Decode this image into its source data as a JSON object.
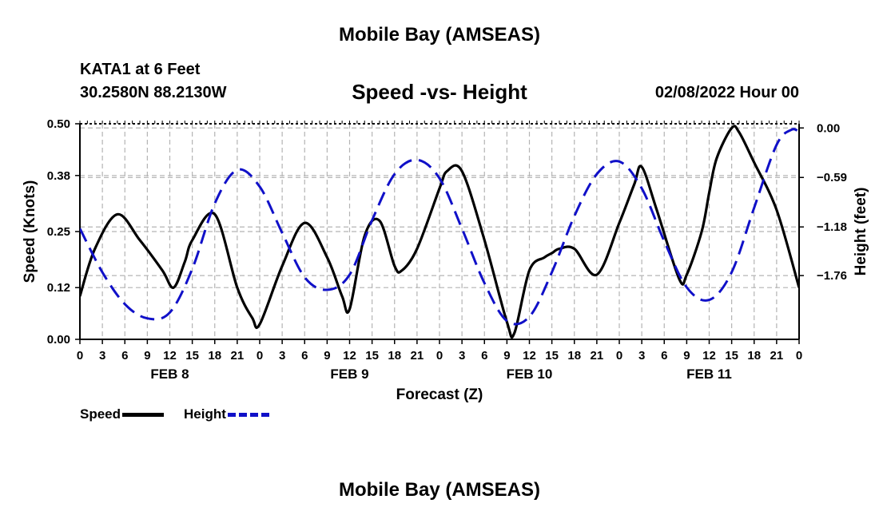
{
  "header": {
    "main_title": "Mobile Bay (AMSEAS)",
    "station": "KATA1 at 6 Feet",
    "coordinates": "30.2580N  88.2130W",
    "chart_title": "Speed -vs- Height",
    "datetime": "02/08/2022 Hour 00",
    "second_title": "Mobile Bay (AMSEAS)"
  },
  "colors": {
    "speed": "#000000",
    "height": "#1010c8",
    "grid": "#b4b4b4"
  },
  "chart_data": {
    "type": "line",
    "title": "Speed -vs- Height",
    "xlabel": "Forecast (Z)",
    "ylabel": "Speed (Knots)",
    "y2label": "Height (feet)",
    "x_unit": "hours since 02/08/2022 00Z",
    "xlim": [
      0,
      96
    ],
    "ylim": [
      0,
      0.5
    ],
    "y2lim": [
      -2.52,
      0.05
    ],
    "grid": true,
    "legend_position": "bottom-left",
    "x_ticks": [
      0,
      3,
      6,
      9,
      12,
      15,
      18,
      21,
      24,
      27,
      30,
      33,
      36,
      39,
      42,
      45,
      48,
      51,
      54,
      57,
      60,
      63,
      66,
      69,
      72,
      75,
      78,
      81,
      84,
      87,
      90,
      93,
      96
    ],
    "x_tick_labels": [
      "0",
      "3",
      "6",
      "9",
      "12",
      "15",
      "18",
      "21",
      "0",
      "3",
      "6",
      "9",
      "12",
      "15",
      "18",
      "21",
      "0",
      "3",
      "6",
      "9",
      "12",
      "15",
      "18",
      "21",
      "0",
      "3",
      "6",
      "9",
      "12",
      "15",
      "18",
      "21",
      "0"
    ],
    "day_labels": [
      {
        "label": "FEB 8",
        "x": 12
      },
      {
        "label": "FEB 9",
        "x": 36
      },
      {
        "label": "FEB 10",
        "x": 60
      },
      {
        "label": "FEB 11",
        "x": 84
      }
    ],
    "y_ticks": [
      0,
      0.12,
      0.25,
      0.38,
      0.5
    ],
    "y_tick_labels": [
      "0.00",
      "0.12",
      "0.25",
      "0.38",
      "0.50"
    ],
    "y2_ticks": [
      0,
      -0.59,
      -1.18,
      -1.76
    ],
    "y2_tick_labels": [
      "0.00",
      "−0.59",
      "−1.18",
      "−1.76"
    ],
    "series": [
      {
        "name": "Speed",
        "axis": "left",
        "style": "solid",
        "x": [
          0,
          2,
          5,
          8,
          11,
          12.5,
          14,
          15,
          18,
          21,
          23,
          24,
          27,
          30,
          33,
          35,
          36,
          38,
          40,
          42,
          43,
          45,
          48,
          49,
          51,
          54,
          57,
          58,
          60,
          62,
          63,
          64,
          66,
          69,
          72,
          74,
          75,
          77,
          80,
          81,
          83,
          84,
          85,
          87,
          88,
          90,
          93,
          96
        ],
        "values": [
          0.1,
          0.21,
          0.29,
          0.23,
          0.16,
          0.12,
          0.18,
          0.23,
          0.29,
          0.12,
          0.05,
          0.035,
          0.17,
          0.27,
          0.19,
          0.1,
          0.07,
          0.24,
          0.275,
          0.17,
          0.16,
          0.21,
          0.35,
          0.39,
          0.39,
          0.23,
          0.04,
          0.015,
          0.16,
          0.19,
          0.2,
          0.21,
          0.21,
          0.15,
          0.27,
          0.36,
          0.4,
          0.3,
          0.14,
          0.15,
          0.25,
          0.34,
          0.42,
          0.49,
          0.48,
          0.41,
          0.3,
          0.12
        ]
      },
      {
        "name": "Height",
        "axis": "right",
        "style": "dashed",
        "x": [
          0,
          3,
          6,
          9,
          12,
          15,
          18,
          21,
          24,
          27,
          30,
          33,
          36,
          39,
          42,
          45,
          48,
          51,
          54,
          57,
          60,
          63,
          66,
          69,
          72,
          75,
          78,
          81,
          84,
          87,
          90,
          93,
          95,
          96
        ],
        "values": [
          -1.2,
          -1.72,
          -2.1,
          -2.27,
          -2.2,
          -1.68,
          -0.9,
          -0.5,
          -0.7,
          -1.25,
          -1.78,
          -1.93,
          -1.75,
          -1.1,
          -0.55,
          -0.38,
          -0.6,
          -1.2,
          -1.85,
          -2.3,
          -2.25,
          -1.72,
          -1.05,
          -0.55,
          -0.4,
          -0.72,
          -1.35,
          -1.9,
          -2.05,
          -1.72,
          -0.95,
          -0.2,
          -0.02,
          -0.05
        ]
      }
    ]
  },
  "legend": {
    "speed_label": "Speed",
    "height_label": "Height"
  }
}
